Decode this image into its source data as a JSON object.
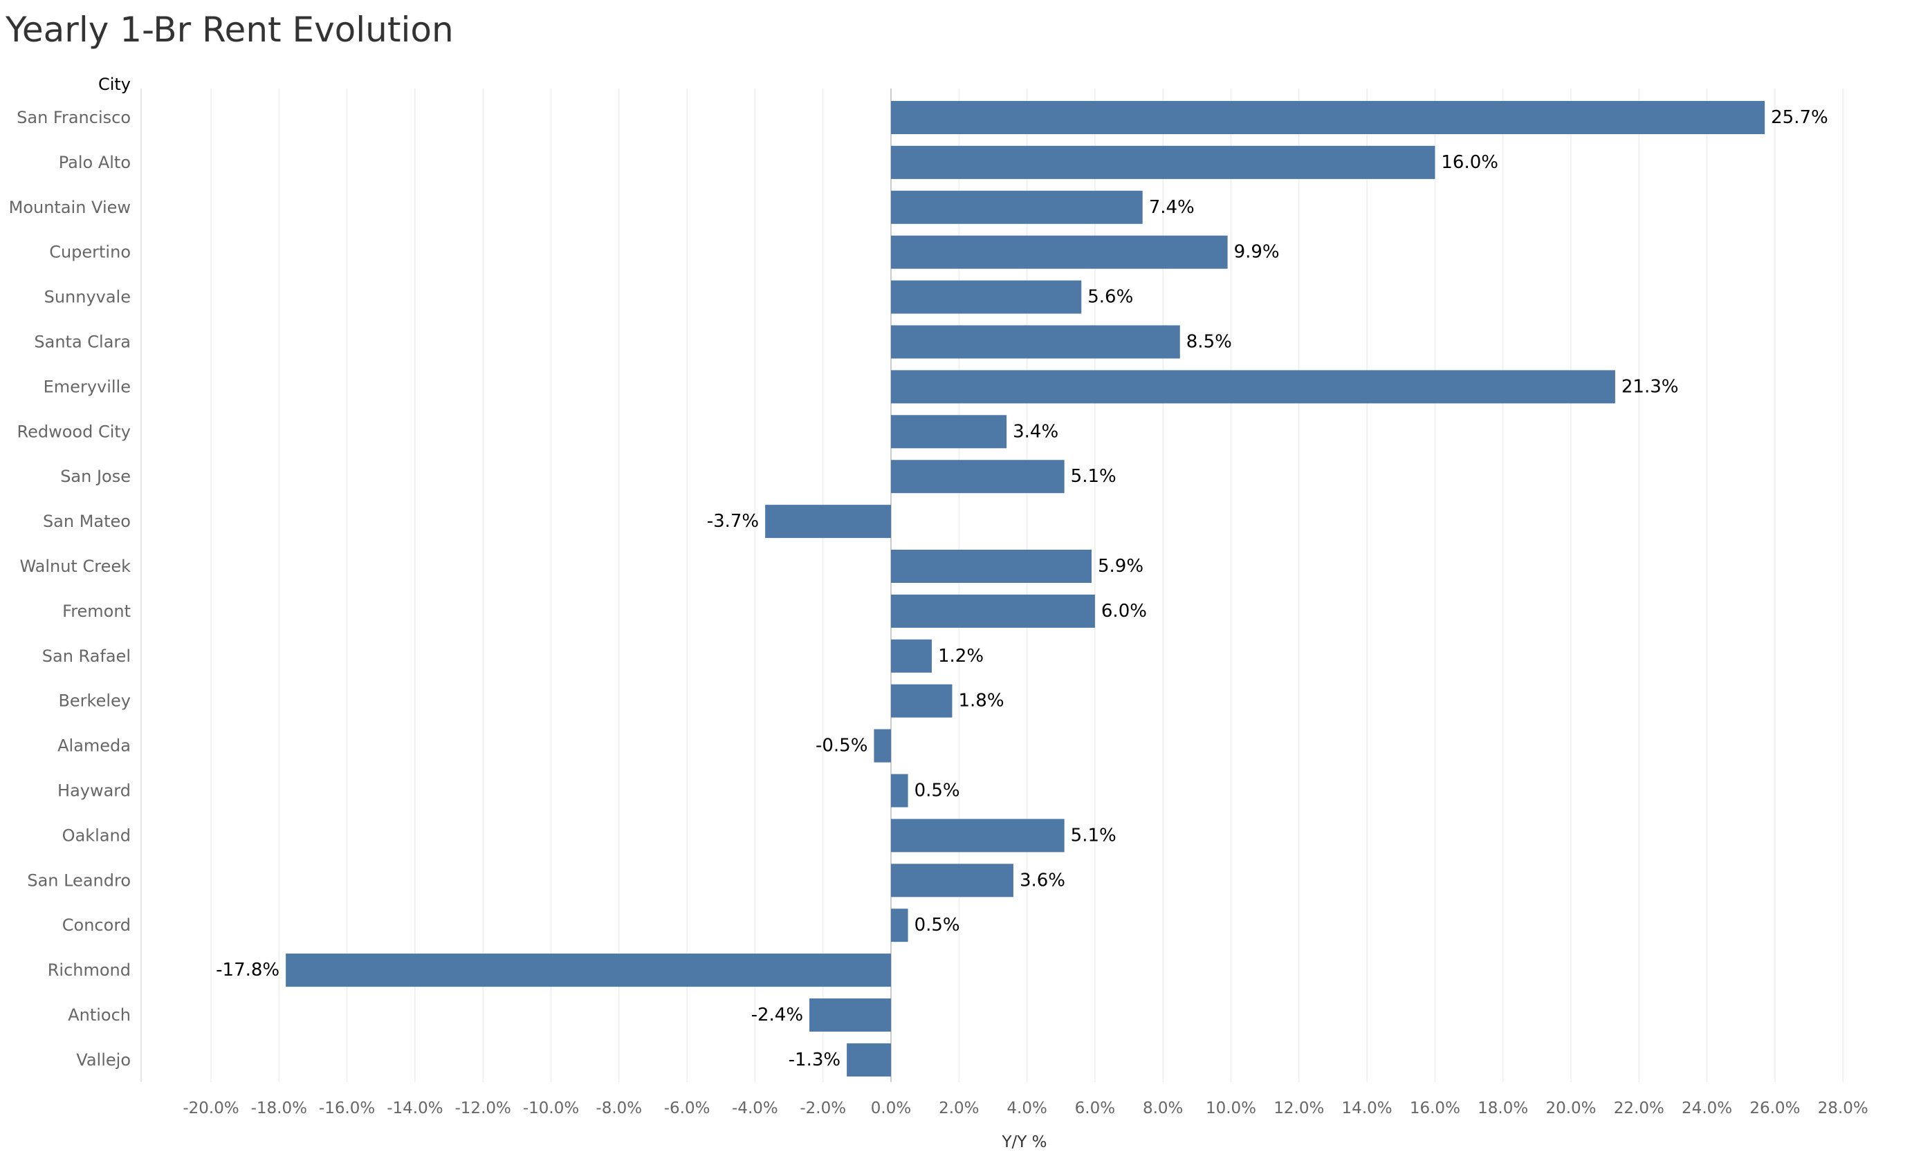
{
  "chart_data": {
    "type": "bar",
    "orientation": "horizontal",
    "title": "Yearly 1-Br Rent Evolution",
    "row_header": "City",
    "xlabel": "Y/Y %",
    "xlim": [
      -22,
      29
    ],
    "x_ticks": [
      -20,
      -18,
      -16,
      -14,
      -12,
      -10,
      -8,
      -6,
      -4,
      -2,
      0,
      2,
      4,
      6,
      8,
      10,
      12,
      14,
      16,
      18,
      20,
      22,
      24,
      26,
      28
    ],
    "x_tick_labels": [
      "-20.0%",
      "-18.0%",
      "-16.0%",
      "-14.0%",
      "-12.0%",
      "-10.0%",
      "-8.0%",
      "-6.0%",
      "-4.0%",
      "-2.0%",
      "0.0%",
      "2.0%",
      "4.0%",
      "6.0%",
      "8.0%",
      "10.0%",
      "12.0%",
      "14.0%",
      "16.0%",
      "18.0%",
      "20.0%",
      "22.0%",
      "24.0%",
      "26.0%",
      "28.0%"
    ],
    "categories": [
      "San Francisco",
      "Palo Alto",
      "Mountain View",
      "Cupertino",
      "Sunnyvale",
      "Santa Clara",
      "Emeryville",
      "Redwood City",
      "San Jose",
      "San Mateo",
      "Walnut Creek",
      "Fremont",
      "San Rafael",
      "Berkeley",
      "Alameda",
      "Hayward",
      "Oakland",
      "San Leandro",
      "Concord",
      "Richmond",
      "Antioch",
      "Vallejo"
    ],
    "values": [
      25.7,
      16.0,
      7.4,
      9.9,
      5.6,
      8.5,
      21.3,
      3.4,
      5.1,
      -3.7,
      5.9,
      6.0,
      1.2,
      1.8,
      -0.5,
      0.5,
      5.1,
      3.6,
      0.5,
      -17.8,
      -2.4,
      -1.3
    ],
    "data_labels": [
      "25.7%",
      "16.0%",
      "7.4%",
      "9.9%",
      "5.6%",
      "8.5%",
      "21.3%",
      "3.4%",
      "5.1%",
      "-3.7%",
      "5.9%",
      "6.0%",
      "1.2%",
      "1.8%",
      "-0.5%",
      "0.5%",
      "5.1%",
      "3.6%",
      "0.5%",
      "-17.8%",
      "-2.4%",
      "-1.3%"
    ],
    "bar_color": "#4e79a7",
    "gridlines": true,
    "grid_color": "#eeeeee",
    "zero_line_color": "#cccccc"
  }
}
